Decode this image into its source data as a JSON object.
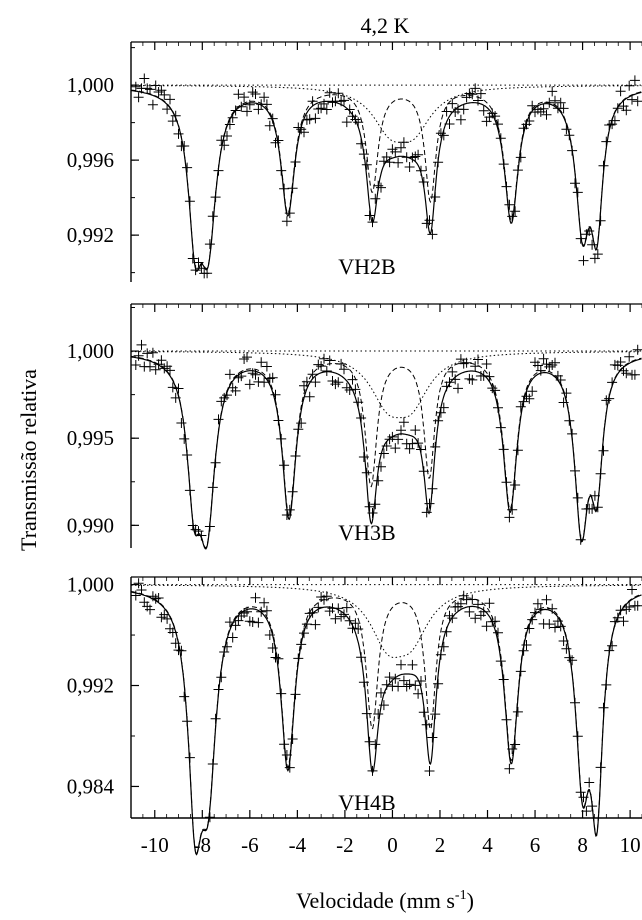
{
  "figure": {
    "title": "4,2 K",
    "ylabel": "Transmissão relativa",
    "xlabel_main": "Velocidade (mm s",
    "xlabel_sup": "-1",
    "xlabel_close": ")"
  },
  "chart_data": [
    {
      "type": "scatter",
      "sample": "VH2B",
      "xlim": [
        -11,
        10.5
      ],
      "ylim": [
        0.9895,
        1.0023
      ],
      "yticks": [
        1.0,
        0.996,
        0.992
      ],
      "ytick_labels": [
        "1,000",
        "0,996",
        "0,992"
      ],
      "baseline": 1.0,
      "lines": [
        {
          "center": -8.3,
          "depth": 0.007,
          "width": 0.35
        },
        {
          "center": -7.75,
          "depth": 0.0075,
          "width": 0.4
        },
        {
          "center": -4.4,
          "depth": 0.0066,
          "width": 0.35
        },
        {
          "center": -0.85,
          "depth": 0.0055,
          "width": 0.3
        },
        {
          "center": 1.6,
          "depth": 0.006,
          "width": 0.28
        },
        {
          "center": 5.0,
          "depth": 0.007,
          "width": 0.35
        },
        {
          "center": 8.0,
          "depth": 0.007,
          "width": 0.35
        },
        {
          "center": 8.6,
          "depth": 0.0068,
          "width": 0.3
        }
      ],
      "central_doublet": [
        {
          "center": -0.1,
          "depth": 0.002,
          "width": 0.9
        },
        {
          "center": 0.9,
          "depth": 0.002,
          "width": 0.9
        }
      ]
    },
    {
      "type": "scatter",
      "sample": "VH3B",
      "xlim": [
        -11,
        10.5
      ],
      "ylim": [
        0.9887,
        1.0027
      ],
      "yticks": [
        1.0,
        0.995,
        0.99
      ],
      "ytick_labels": [
        "1,000",
        "0,995",
        "0,990"
      ],
      "baseline": 1.0,
      "lines": [
        {
          "center": -8.35,
          "depth": 0.007,
          "width": 0.35
        },
        {
          "center": -7.8,
          "depth": 0.009,
          "width": 0.4
        },
        {
          "center": -4.35,
          "depth": 0.0092,
          "width": 0.35
        },
        {
          "center": -0.9,
          "depth": 0.0075,
          "width": 0.3
        },
        {
          "center": 1.55,
          "depth": 0.007,
          "width": 0.28
        },
        {
          "center": 4.95,
          "depth": 0.0088,
          "width": 0.35
        },
        {
          "center": 7.95,
          "depth": 0.0095,
          "width": 0.35
        },
        {
          "center": 8.6,
          "depth": 0.0068,
          "width": 0.3
        }
      ],
      "central_doublet": [
        {
          "center": -0.2,
          "depth": 0.0025,
          "width": 0.9
        },
        {
          "center": 0.8,
          "depth": 0.0025,
          "width": 0.9
        }
      ]
    },
    {
      "type": "scatter",
      "sample": "VH4B",
      "xlim": [
        -11,
        10.5
      ],
      "ylim": [
        0.9815,
        1.0006
      ],
      "yticks": [
        1.0,
        0.992,
        0.984
      ],
      "ytick_labels": [
        "1,000",
        "0,992",
        "0,984"
      ],
      "baseline": 1.0,
      "lines": [
        {
          "center": -8.3,
          "depth": 0.016,
          "width": 0.35
        },
        {
          "center": -7.75,
          "depth": 0.014,
          "width": 0.4
        },
        {
          "center": -4.4,
          "depth": 0.014,
          "width": 0.35
        },
        {
          "center": -0.85,
          "depth": 0.011,
          "width": 0.3
        },
        {
          "center": 1.6,
          "depth": 0.011,
          "width": 0.28
        },
        {
          "center": 5.0,
          "depth": 0.0135,
          "width": 0.35
        },
        {
          "center": 8.0,
          "depth": 0.014,
          "width": 0.35
        },
        {
          "center": 8.6,
          "depth": 0.016,
          "width": 0.3
        }
      ],
      "central_doublet": [
        {
          "center": -0.2,
          "depth": 0.004,
          "width": 0.9
        },
        {
          "center": 0.8,
          "depth": 0.0035,
          "width": 0.9
        }
      ]
    }
  ],
  "xaxis": {
    "ticks": [
      -10,
      -8,
      -6,
      -4,
      -2,
      0,
      2,
      4,
      6,
      8,
      10
    ],
    "tick_labels": [
      "-10",
      "-8",
      "-6",
      "-4",
      "-2",
      "0",
      "2",
      "4",
      "6",
      "8",
      "10"
    ]
  },
  "style": {
    "line_color": "#000000",
    "background": "#ffffff"
  }
}
